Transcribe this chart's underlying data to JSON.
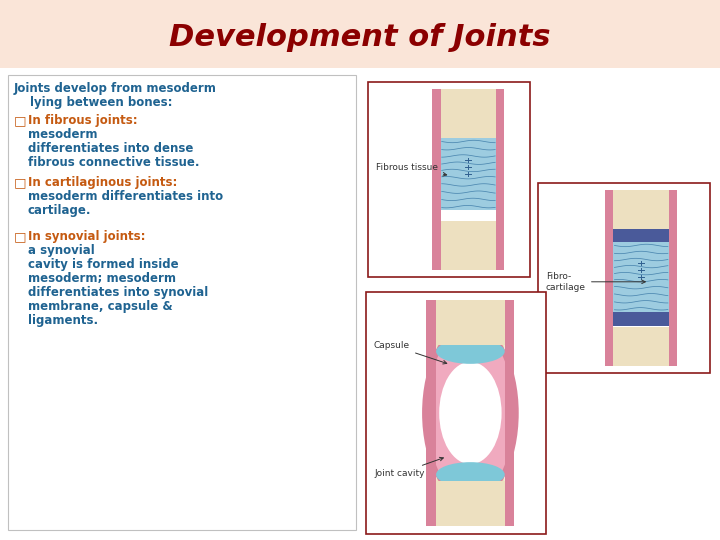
{
  "title": "Development of Joints",
  "title_color": "#8B0000",
  "title_fontsize": 22,
  "title_bg_color": "#FAE5D8",
  "bg_color": "#FFFFFF",
  "text_blue": "#1F6391",
  "text_orange": "#C55A11",
  "bullet_color": "#C55A11",
  "diagram_border": "#8B1A1A",
  "text_box_border": "#C0C0C0",
  "intro_line1": "Joints develop from mesoderm",
  "intro_line2": "    lying between bones:",
  "bullet1_orange": "In fibrous joints: ",
  "bullet1_blue": "mesoderm\n    differentiates into dense\n    fibrous connective tissue.",
  "bullet2_orange": "In cartilaginous joints: ",
  "bullet2_blue": "mesoderm differentiates into\n    cartilage.",
  "bullet3_orange": "In synovial joints: ",
  "bullet3_blue": "a synovial\n    cavity is formed inside\n    mesoderm; mesoderm\n    differentiates into synovial\n    membrane, capsule &\n    ligaments.",
  "label_fibrous": "Fibrous tissue",
  "label_fibrocartilage": "Fibro-\ncartilage",
  "label_capsule": "Capsule",
  "label_joint_cavity": "Joint cavity",
  "bone_color": "#EDE0C0",
  "periosteum_color": "#D9829A",
  "fibrous_color": "#9DCCE0",
  "fibrocart_light": "#9DCCE0",
  "fibrocart_dark": "#4A5A9A",
  "synovial_pink_outer": "#D9829A",
  "synovial_pink_inner": "#F0AABF",
  "synovial_blue": "#7EC8D8",
  "white": "#FFFFFF"
}
